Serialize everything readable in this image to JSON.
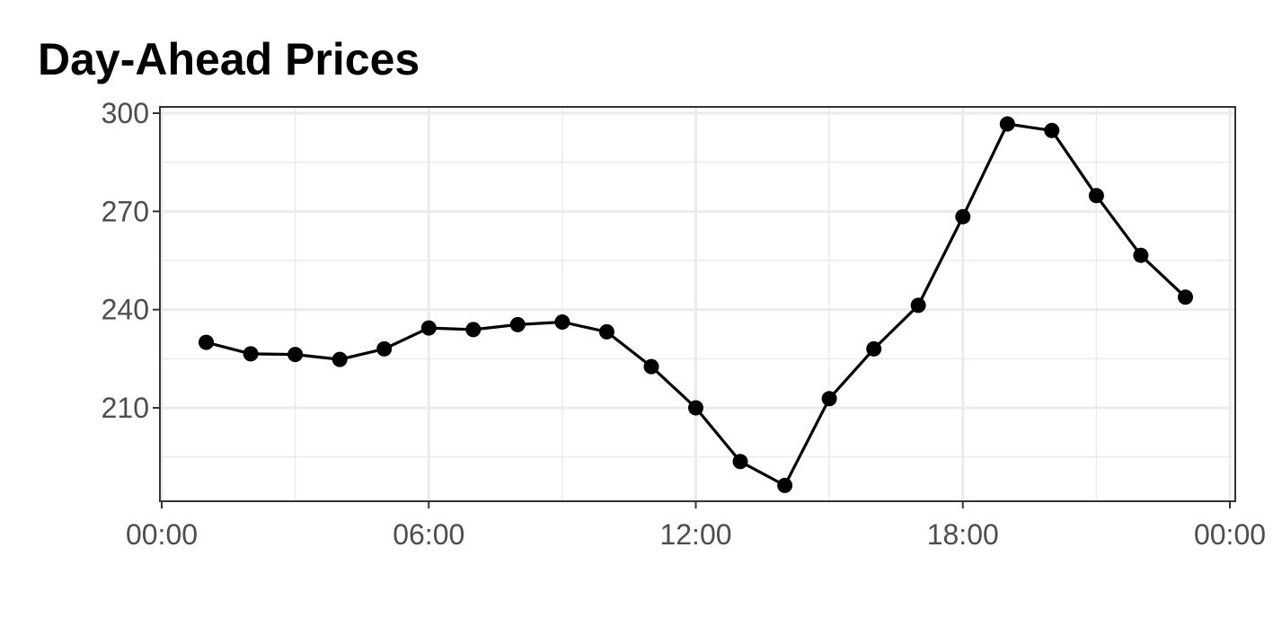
{
  "chart_data": {
    "type": "line",
    "title": "Day-Ahead Prices",
    "xlabel": "",
    "ylabel": "",
    "x_tick_labels": [
      "00:00",
      "06:00",
      "12:00",
      "18:00",
      "00:00"
    ],
    "y_ticks": [
      210,
      240,
      270,
      300
    ],
    "ylim": [
      183,
      300
    ],
    "xlim_hours": [
      0,
      24
    ],
    "grid": true,
    "legend": "none",
    "series": [
      {
        "x": [
          "01:00",
          "02:00",
          "03:00",
          "04:00",
          "05:00",
          "06:00",
          "07:00",
          "08:00",
          "09:00",
          "10:00",
          "11:00",
          "12:00",
          "13:00",
          "14:00",
          "15:00",
          "16:00",
          "17:00",
          "18:00",
          "19:00",
          "20:00",
          "21:00",
          "22:00",
          "23:00"
        ],
        "values": [
          230,
          226.5,
          226.3,
          224.8,
          228,
          234.4,
          233.9,
          235.4,
          236.2,
          233.2,
          222.6,
          210,
          193.6,
          186.3,
          212.8,
          228,
          241.3,
          268.4,
          296.7,
          294.7,
          274.8,
          256.6,
          243.8
        ],
        "color": "#000000"
      }
    ]
  }
}
